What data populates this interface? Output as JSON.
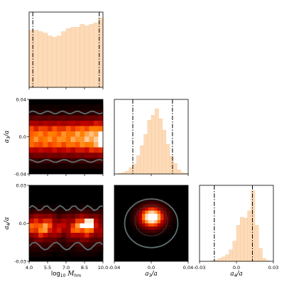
{
  "chart_data": {
    "type": "corner",
    "parameters": [
      {
        "key": "logM",
        "label": "log",
        "label_sub": "10",
        "label_var": "M",
        "label_var_sub": "hm",
        "range": [
          4.0,
          10.0
        ],
        "ticks": [
          "4.0",
          "5.5",
          "7.0",
          "8.5",
          "10.0"
        ],
        "credible_lines": [
          4.3,
          9.7
        ]
      },
      {
        "key": "a3",
        "label": "a",
        "label_sub": "3",
        "label_rest": "/a",
        "range": [
          -0.04,
          0.04
        ],
        "ticks": [
          "-0.04",
          "0.0",
          "0.04"
        ],
        "credible_lines": [
          -0.02,
          0.023
        ]
      },
      {
        "key": "a4",
        "label": "a",
        "label_sub": "4",
        "label_rest": "/a",
        "range": [
          -0.03,
          0.03
        ],
        "ticks": [
          "-0.03",
          "0.0",
          "0.03"
        ],
        "credible_lines": [
          -0.018,
          0.013
        ]
      }
    ],
    "histograms": {
      "logM": {
        "bin_edges_range": [
          4.0,
          10.0
        ],
        "counts": [
          0.8,
          0.8,
          0.78,
          0.76,
          0.72,
          0.7,
          0.72,
          0.78,
          0.82,
          0.84,
          0.84,
          0.88,
          0.86,
          0.88,
          0.9,
          0.97
        ]
      },
      "a3": {
        "bin_edges_range": [
          -0.04,
          0.04
        ],
        "counts": [
          0.0,
          0.01,
          0.02,
          0.04,
          0.09,
          0.14,
          0.26,
          0.4,
          0.56,
          0.76,
          0.83,
          0.92,
          0.78,
          0.62,
          0.42,
          0.25,
          0.15,
          0.06,
          0.02,
          0.01
        ]
      },
      "a4": {
        "bin_edges_range": [
          -0.03,
          0.03
        ],
        "counts": [
          0.0,
          0.0,
          0.0,
          0.01,
          0.02,
          0.04,
          0.06,
          0.09,
          0.16,
          0.28,
          0.5,
          0.61,
          0.6,
          0.7,
          0.98,
          0.5,
          0.18,
          0.04,
          0.01,
          0.0
        ]
      }
    },
    "joint_densities": {
      "logM_a3": {
        "x": "logM",
        "y": "a3",
        "shape": "horizontal band centered at a3=0.0, peak near logM=10.0"
      },
      "logM_a4": {
        "x": "logM",
        "y": "a4",
        "shape": "horizontal band centered at a4=0.0, peak near logM=8.5"
      },
      "a3_a4": {
        "x": "a3",
        "y": "a4",
        "shape": "compact blob centered at (0.0, 0.0)"
      }
    },
    "colormap": "gist_heat",
    "hist_color": "#fddbb8",
    "contour_color": "#5f6f70",
    "line_style": "dash-dot black at 16% / 84% quantiles"
  }
}
